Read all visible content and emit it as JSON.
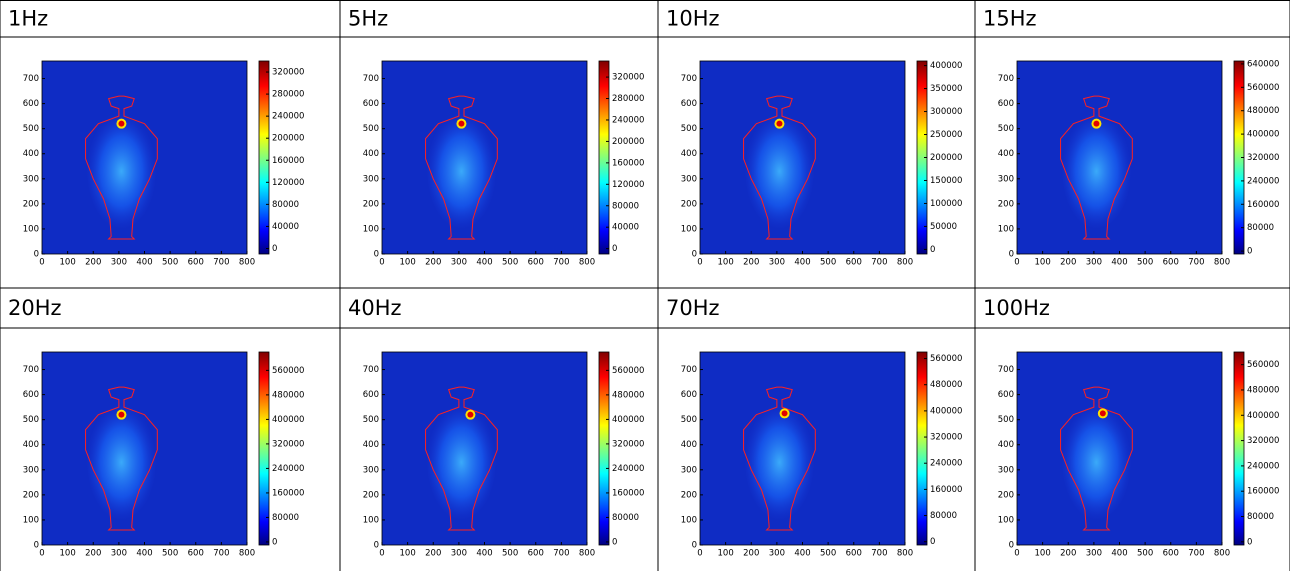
{
  "chart_data": [
    {
      "type": "heatmap",
      "title": "1Hz",
      "xlim": [
        0,
        800
      ],
      "xticks": [
        0,
        100,
        200,
        300,
        400,
        500,
        600,
        700,
        800
      ],
      "ylim": [
        0,
        770
      ],
      "yticks": [
        0,
        100,
        200,
        300,
        400,
        500,
        600,
        700
      ],
      "clim": [
        -10000,
        340000
      ],
      "cticks": [
        0,
        40000,
        80000,
        120000,
        160000,
        200000,
        240000,
        280000,
        320000
      ],
      "peak": [
        310,
        520
      ]
    },
    {
      "type": "heatmap",
      "title": "5Hz",
      "xlim": [
        0,
        800
      ],
      "xticks": [
        0,
        100,
        200,
        300,
        400,
        500,
        600,
        700,
        800
      ],
      "ylim": [
        0,
        770
      ],
      "yticks": [
        0,
        100,
        200,
        300,
        400,
        500,
        600,
        700
      ],
      "clim": [
        -10000,
        350000
      ],
      "cticks": [
        0,
        40000,
        80000,
        120000,
        160000,
        200000,
        240000,
        280000,
        320000
      ],
      "peak": [
        310,
        520
      ]
    },
    {
      "type": "heatmap",
      "title": "10Hz",
      "xlim": [
        0,
        800
      ],
      "xticks": [
        0,
        100,
        200,
        300,
        400,
        500,
        600,
        700,
        800
      ],
      "ylim": [
        0,
        770
      ],
      "yticks": [
        0,
        100,
        200,
        300,
        400,
        500,
        600,
        700
      ],
      "clim": [
        -10000,
        410000
      ],
      "cticks": [
        0,
        50000,
        100000,
        150000,
        200000,
        250000,
        300000,
        350000,
        400000
      ],
      "peak": [
        310,
        520
      ]
    },
    {
      "type": "heatmap",
      "title": "15Hz",
      "xlim": [
        0,
        800
      ],
      "xticks": [
        0,
        100,
        200,
        300,
        400,
        500,
        600,
        700,
        800
      ],
      "ylim": [
        0,
        770
      ],
      "yticks": [
        0,
        100,
        200,
        300,
        400,
        500,
        600,
        700
      ],
      "clim": [
        -10000,
        650000
      ],
      "cticks": [
        0,
        80000,
        160000,
        240000,
        320000,
        400000,
        480000,
        560000,
        640000
      ],
      "peak": [
        310,
        520
      ]
    },
    {
      "type": "heatmap",
      "title": "20Hz",
      "xlim": [
        0,
        800
      ],
      "xticks": [
        0,
        100,
        200,
        300,
        400,
        500,
        600,
        700,
        800
      ],
      "ylim": [
        0,
        770
      ],
      "yticks": [
        0,
        100,
        200,
        300,
        400,
        500,
        600,
        700
      ],
      "clim": [
        -10000,
        620000
      ],
      "cticks": [
        0,
        80000,
        160000,
        240000,
        320000,
        400000,
        480000,
        560000
      ],
      "peak": [
        310,
        520
      ]
    },
    {
      "type": "heatmap",
      "title": "40Hz",
      "xlim": [
        0,
        800
      ],
      "xticks": [
        0,
        100,
        200,
        300,
        400,
        500,
        600,
        700,
        800
      ],
      "ylim": [
        0,
        770
      ],
      "yticks": [
        0,
        100,
        200,
        300,
        400,
        500,
        600,
        700
      ],
      "clim": [
        -10000,
        620000
      ],
      "cticks": [
        0,
        80000,
        160000,
        240000,
        320000,
        400000,
        480000,
        560000
      ],
      "peak": [
        345,
        520
      ]
    },
    {
      "type": "heatmap",
      "title": "70Hz",
      "xlim": [
        0,
        800
      ],
      "xticks": [
        0,
        100,
        200,
        300,
        400,
        500,
        600,
        700,
        800
      ],
      "ylim": [
        0,
        770
      ],
      "yticks": [
        0,
        100,
        200,
        300,
        400,
        500,
        600,
        700
      ],
      "clim": [
        -10000,
        580000
      ],
      "cticks": [
        0,
        80000,
        160000,
        240000,
        320000,
        400000,
        480000,
        560000
      ],
      "peak": [
        330,
        525
      ]
    },
    {
      "type": "heatmap",
      "title": "100Hz",
      "xlim": [
        0,
        800
      ],
      "xticks": [
        0,
        100,
        200,
        300,
        400,
        500,
        600,
        700,
        800
      ],
      "ylim": [
        0,
        770
      ],
      "yticks": [
        0,
        100,
        200,
        300,
        400,
        500,
        600,
        700
      ],
      "clim": [
        -10000,
        600000
      ],
      "cticks": [
        0,
        80000,
        160000,
        240000,
        320000,
        400000,
        480000,
        560000
      ],
      "peak": [
        335,
        525
      ]
    }
  ]
}
